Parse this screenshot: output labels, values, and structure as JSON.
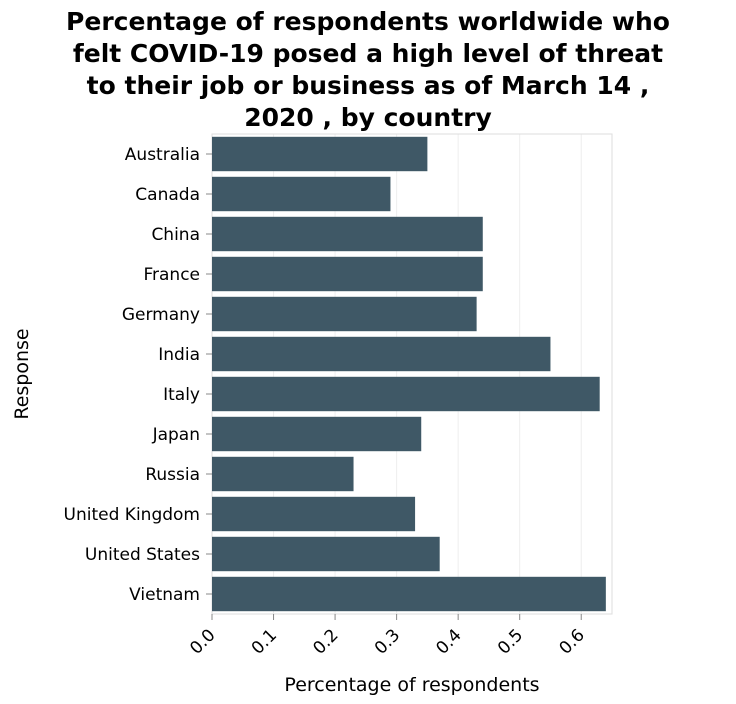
{
  "chart_data": {
    "type": "bar",
    "orientation": "horizontal",
    "title": "Percentage of respondents worldwide who felt COVID-19 posed a high level of threat to their job or business as of March 14 , 2020 , by country",
    "title_lines": [
      "Percentage of respondents worldwide who",
      "felt COVID-19 posed a high level of threat",
      "to their job or business as of March 14 ,",
      "2020 , by country"
    ],
    "xlabel": "Percentage of respondents",
    "ylabel": "Response",
    "categories": [
      "Australia",
      "Canada",
      "China",
      "France",
      "Germany",
      "India",
      "Italy",
      "Japan",
      "Russia",
      "United Kingdom",
      "United States",
      "Vietnam"
    ],
    "values": [
      0.35,
      0.29,
      0.44,
      0.44,
      0.43,
      0.55,
      0.63,
      0.34,
      0.23,
      0.33,
      0.37,
      0.64
    ],
    "xlim": [
      0,
      0.65
    ],
    "xticks": [
      "0.0",
      "0.1",
      "0.2",
      "0.3",
      "0.4",
      "0.5",
      "0.6"
    ],
    "bar_color": "#3f5866",
    "grid": true,
    "legend": "none"
  }
}
